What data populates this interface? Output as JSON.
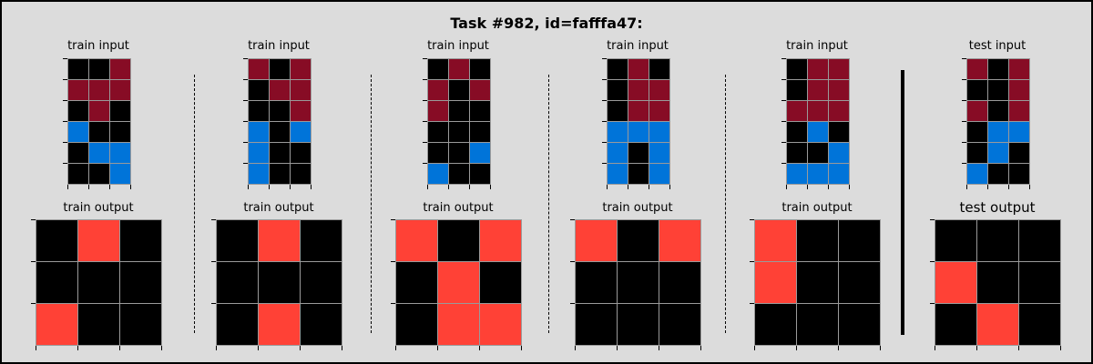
{
  "title": "Task #982, id=fafffa47:",
  "colors": {
    "0": "#000000",
    "2": "#ff4136",
    "1": "#0074d9",
    "9": "#870c25"
  },
  "labels": {
    "train_input": "train input",
    "train_output": "train output",
    "test_input": "test input",
    "test_output": "test output"
  },
  "pairs": [
    {
      "kind": "train",
      "input": [
        [
          0,
          0,
          9
        ],
        [
          9,
          9,
          9
        ],
        [
          0,
          9,
          0
        ],
        [
          1,
          0,
          0
        ],
        [
          0,
          1,
          1
        ],
        [
          0,
          0,
          1
        ]
      ],
      "output": [
        [
          0,
          2,
          0
        ],
        [
          0,
          0,
          0
        ],
        [
          2,
          0,
          0
        ]
      ]
    },
    {
      "kind": "train",
      "input": [
        [
          9,
          0,
          9
        ],
        [
          0,
          9,
          9
        ],
        [
          0,
          0,
          9
        ],
        [
          1,
          0,
          1
        ],
        [
          1,
          0,
          0
        ],
        [
          1,
          0,
          0
        ]
      ],
      "output": [
        [
          0,
          2,
          0
        ],
        [
          0,
          0,
          0
        ],
        [
          0,
          2,
          0
        ]
      ]
    },
    {
      "kind": "train",
      "input": [
        [
          0,
          9,
          0
        ],
        [
          9,
          0,
          9
        ],
        [
          9,
          0,
          0
        ],
        [
          0,
          0,
          0
        ],
        [
          0,
          0,
          1
        ],
        [
          1,
          0,
          0
        ]
      ],
      "output": [
        [
          2,
          0,
          2
        ],
        [
          0,
          2,
          0
        ],
        [
          0,
          2,
          2
        ]
      ]
    },
    {
      "kind": "train",
      "input": [
        [
          0,
          9,
          0
        ],
        [
          0,
          9,
          9
        ],
        [
          0,
          9,
          9
        ],
        [
          1,
          1,
          1
        ],
        [
          1,
          0,
          1
        ],
        [
          1,
          0,
          1
        ]
      ],
      "output": [
        [
          2,
          0,
          2
        ],
        [
          0,
          0,
          0
        ],
        [
          0,
          0,
          0
        ]
      ]
    },
    {
      "kind": "train",
      "input": [
        [
          0,
          9,
          9
        ],
        [
          0,
          9,
          9
        ],
        [
          9,
          9,
          9
        ],
        [
          0,
          1,
          0
        ],
        [
          0,
          0,
          1
        ],
        [
          1,
          1,
          1
        ]
      ],
      "output": [
        [
          2,
          0,
          0
        ],
        [
          2,
          0,
          0
        ],
        [
          0,
          0,
          0
        ]
      ]
    },
    {
      "kind": "test",
      "input": [
        [
          9,
          0,
          9
        ],
        [
          0,
          0,
          9
        ],
        [
          9,
          0,
          9
        ],
        [
          0,
          1,
          1
        ],
        [
          0,
          1,
          0
        ],
        [
          1,
          0,
          0
        ]
      ],
      "output": [
        [
          0,
          0,
          0
        ],
        [
          2,
          0,
          0
        ],
        [
          0,
          2,
          0
        ]
      ]
    }
  ]
}
